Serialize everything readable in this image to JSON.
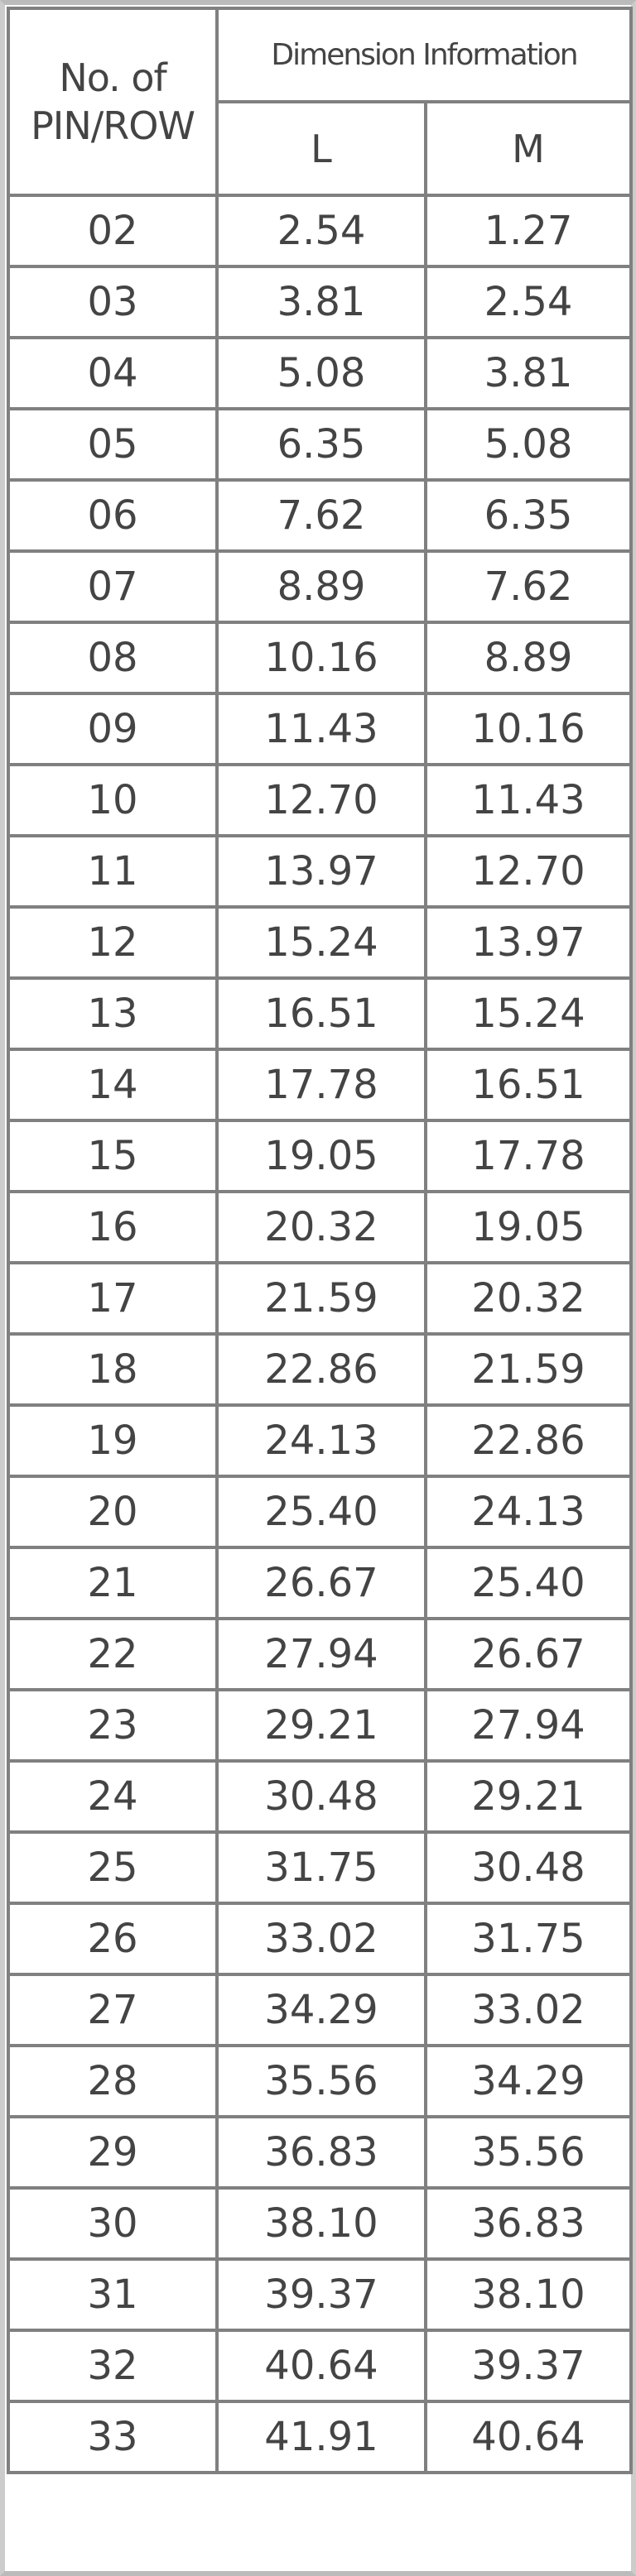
{
  "header": {
    "pin_label_line1": "No. of",
    "pin_label_line2": "PIN/ROW",
    "dimension_label": "Dimension Information",
    "col_l": "L",
    "col_m": "M"
  },
  "rows": [
    [
      "02",
      "2.54",
      "1.27"
    ],
    [
      "03",
      "3.81",
      "2.54"
    ],
    [
      "04",
      "5.08",
      "3.81"
    ],
    [
      "05",
      "6.35",
      "5.08"
    ],
    [
      "06",
      "7.62",
      "6.35"
    ],
    [
      "07",
      "8.89",
      "7.62"
    ],
    [
      "08",
      "10.16",
      "8.89"
    ],
    [
      "09",
      "11.43",
      "10.16"
    ],
    [
      "10",
      "12.70",
      "11.43"
    ],
    [
      "11",
      "13.97",
      "12.70"
    ],
    [
      "12",
      "15.24",
      "13.97"
    ],
    [
      "13",
      "16.51",
      "15.24"
    ],
    [
      "14",
      "17.78",
      "16.51"
    ],
    [
      "15",
      "19.05",
      "17.78"
    ],
    [
      "16",
      "20.32",
      "19.05"
    ],
    [
      "17",
      "21.59",
      "20.32"
    ],
    [
      "18",
      "22.86",
      "21.59"
    ],
    [
      "19",
      "24.13",
      "22.86"
    ],
    [
      "20",
      "25.40",
      "24.13"
    ],
    [
      "21",
      "26.67",
      "25.40"
    ],
    [
      "22",
      "27.94",
      "26.67"
    ],
    [
      "23",
      "29.21",
      "27.94"
    ],
    [
      "24",
      "30.48",
      "29.21"
    ],
    [
      "25",
      "31.75",
      "30.48"
    ],
    [
      "26",
      "33.02",
      "31.75"
    ],
    [
      "27",
      "34.29",
      "33.02"
    ],
    [
      "28",
      "35.56",
      "34.29"
    ],
    [
      "29",
      "36.83",
      "35.56"
    ],
    [
      "30",
      "38.10",
      "36.83"
    ],
    [
      "31",
      "39.37",
      "38.10"
    ],
    [
      "32",
      "40.64",
      "39.37"
    ],
    [
      "33",
      "41.91",
      "40.64"
    ]
  ]
}
